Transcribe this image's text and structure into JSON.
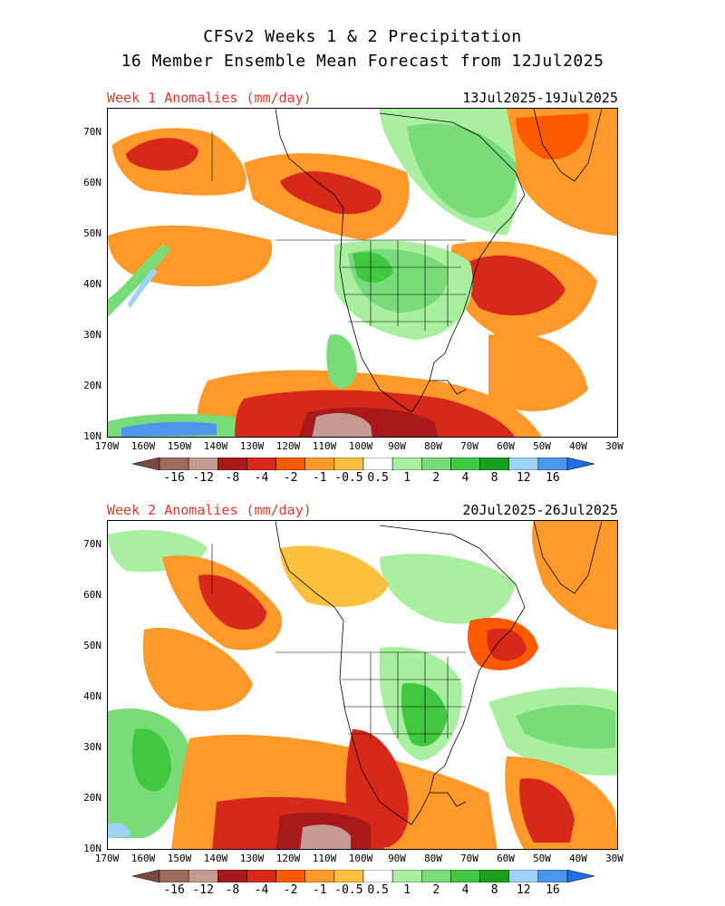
{
  "header": {
    "title_line1": "CFSv2 Weeks 1 & 2 Precipitation",
    "title_line2": "16 Member Ensemble Mean Forecast from 12Jul2025"
  },
  "panels": [
    {
      "label": "Week 1 Anomalies (mm/day)",
      "dates": "13Jul2025-19Jul2025"
    },
    {
      "label": "Week 2 Anomalies (mm/day)",
      "dates": "20Jul2025-26Jul2025"
    }
  ],
  "lat_labels": [
    "70N",
    "60N",
    "50N",
    "40N",
    "30N",
    "20N",
    "10N"
  ],
  "lon_labels": [
    "170W",
    "160W",
    "150W",
    "140W",
    "130W",
    "120W",
    "110W",
    "100W",
    "90W",
    "80W",
    "70W",
    "60W",
    "50W",
    "40W",
    "30W"
  ],
  "colorbar": {
    "labels": [
      "-16",
      "-12",
      "-8",
      "-4",
      "-2",
      "-1",
      "-0.5",
      "0.5",
      "1",
      "2",
      "4",
      "8",
      "12",
      "16"
    ],
    "colors": [
      "#9b6b5e",
      "#c59a90",
      "#a81a1a",
      "#d8281a",
      "#ff5a00",
      "#ff9a2a",
      "#ffc040",
      "#ffffff",
      "#a8f0a0",
      "#78dc78",
      "#40c840",
      "#18a018",
      "#a0d2ff",
      "#4c96f0"
    ],
    "end_left": "#7a4a40",
    "end_right": "#1e6ee6"
  },
  "palette": {
    "dry_light": "#ffc040",
    "dry_mid": "#ff9a2a",
    "dry_strong": "#ff5a00",
    "dry_very": "#d8281a",
    "dry_extreme": "#a81a1a",
    "wet_light": "#a8f0a0",
    "wet_mid": "#78dc78",
    "wet_strong": "#40c840",
    "wet_very": "#18a018",
    "blue_light": "#a0d2ff",
    "blue": "#4c96f0"
  }
}
